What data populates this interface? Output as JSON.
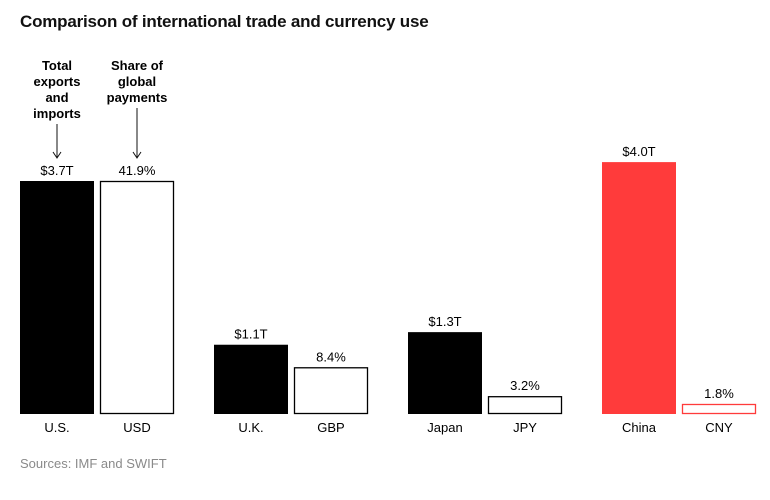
{
  "title": "Comparison of international trade and currency use",
  "source": "Sources: IMF and SWIFT",
  "annotations": {
    "trade": [
      "Total",
      "exports",
      "and",
      "imports"
    ],
    "payments": [
      "Share of",
      "global",
      "payments"
    ]
  },
  "colors": {
    "trade_bar": "#000000",
    "china_bar": "#ff3b3b",
    "share_outline": "#000000",
    "cny_outline": "#ff3b3b"
  },
  "chart_data": {
    "type": "bar",
    "title": "Comparison of international trade and currency use",
    "groups": [
      {
        "country": "U.S.",
        "currency": "USD",
        "trade_value": 3.7,
        "trade_label": "$3.7T",
        "share_value": 41.9,
        "share_label": "41.9%",
        "highlight": false
      },
      {
        "country": "U.K.",
        "currency": "GBP",
        "trade_value": 1.1,
        "trade_label": "$1.1T",
        "share_value": 8.4,
        "share_label": "8.4%",
        "highlight": false
      },
      {
        "country": "Japan",
        "currency": "JPY",
        "trade_value": 1.3,
        "trade_label": "$1.3T",
        "share_value": 3.2,
        "share_label": "3.2%",
        "highlight": false
      },
      {
        "country": "China",
        "currency": "CNY",
        "trade_value": 4.0,
        "trade_label": "$4.0T",
        "share_value": 1.8,
        "share_label": "1.8%",
        "highlight": true
      }
    ],
    "series": [
      {
        "name": "Total exports and imports",
        "unit": "trillion USD"
      },
      {
        "name": "Share of global payments",
        "unit": "percent"
      }
    ]
  }
}
